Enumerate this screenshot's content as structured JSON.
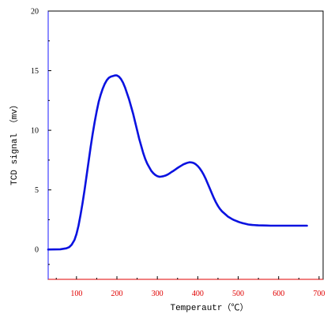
{
  "chart_data": {
    "type": "line",
    "title": "",
    "xlabel": "Temperautr（℃）",
    "ylabel": "TCD signal （mv）",
    "xlim": [
      30,
      710
    ],
    "ylim": [
      -2.5,
      20
    ],
    "x_ticks": [
      100,
      200,
      300,
      400,
      500,
      600,
      700
    ],
    "x_tick_labels": [
      "100",
      "200",
      "300",
      "400",
      "500",
      "600",
      "700"
    ],
    "y_ticks": [
      0,
      5,
      10,
      15,
      20
    ],
    "y_tick_labels": [
      "0",
      "5",
      "10",
      "15",
      "20"
    ],
    "grid": false,
    "colors": {
      "line": "#0a12e0",
      "x_tick_labels": "#e00000",
      "y_tick_labels": "#000000",
      "frame": "#000000",
      "x_axis": "#e00000",
      "y_axis": "#1a1aff"
    },
    "series": [
      {
        "x": [
          30,
          60,
          75,
          82,
          88,
          95,
          100,
          105,
          110,
          115,
          120,
          125,
          130,
          135,
          140,
          145,
          150,
          155,
          160,
          165,
          170,
          175,
          180,
          185,
          190,
          195,
          200,
          205,
          210,
          215,
          220,
          225,
          230,
          235,
          240,
          245,
          250,
          255,
          260,
          265,
          270,
          275,
          280,
          285,
          290,
          295,
          300,
          305,
          310,
          315,
          320,
          325,
          330,
          335,
          340,
          345,
          350,
          355,
          360,
          365,
          370,
          375,
          380,
          385,
          390,
          395,
          400,
          405,
          410,
          415,
          420,
          425,
          430,
          435,
          440,
          445,
          450,
          455,
          460,
          465,
          470,
          475,
          480,
          485,
          490,
          495,
          500,
          505,
          510,
          515,
          520,
          525,
          530,
          535,
          540,
          545,
          550,
          560,
          570,
          580,
          590,
          600,
          610,
          620,
          630,
          640,
          650,
          660,
          670
        ],
        "y": [
          0.0,
          0.02,
          0.1,
          0.2,
          0.4,
          0.8,
          1.3,
          2.0,
          2.9,
          3.9,
          5.0,
          6.2,
          7.4,
          8.6,
          9.7,
          10.7,
          11.6,
          12.4,
          13.0,
          13.5,
          13.9,
          14.2,
          14.4,
          14.5,
          14.55,
          14.6,
          14.6,
          14.5,
          14.3,
          14.0,
          13.6,
          13.1,
          12.6,
          12.0,
          11.4,
          10.7,
          10.0,
          9.3,
          8.7,
          8.1,
          7.6,
          7.2,
          6.9,
          6.6,
          6.4,
          6.25,
          6.15,
          6.1,
          6.12,
          6.15,
          6.2,
          6.28,
          6.38,
          6.5,
          6.6,
          6.72,
          6.84,
          6.95,
          7.05,
          7.15,
          7.22,
          7.28,
          7.32,
          7.3,
          7.25,
          7.15,
          7.0,
          6.8,
          6.55,
          6.25,
          5.9,
          5.5,
          5.1,
          4.7,
          4.3,
          3.95,
          3.65,
          3.4,
          3.2,
          3.05,
          2.9,
          2.75,
          2.65,
          2.55,
          2.47,
          2.4,
          2.33,
          2.27,
          2.22,
          2.18,
          2.14,
          2.1,
          2.08,
          2.06,
          2.05,
          2.04,
          2.03,
          2.02,
          2.01,
          2.0,
          2.0,
          2.0,
          2.0,
          2.0,
          2.0,
          2.0,
          2.0,
          2.0,
          2.0
        ]
      }
    ]
  }
}
